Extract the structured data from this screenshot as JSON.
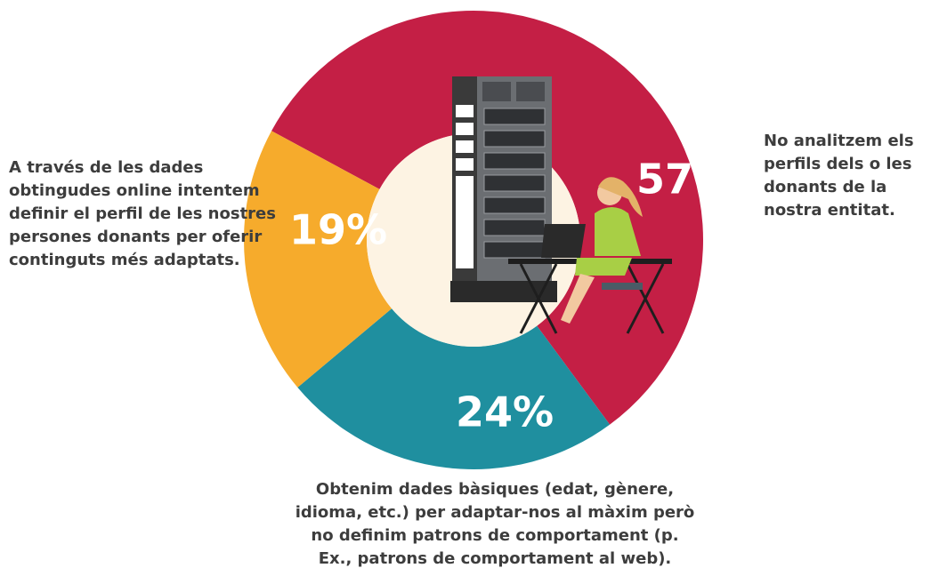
{
  "chart_data": {
    "type": "pie",
    "donut": true,
    "categories": [
      "No analitzem els perfils dels o les donants de la nostra entitat.",
      "Obtenim dades bàsiques (edat, gènere, idioma, etc.) per adaptar-nos al màxim però no definim patrons de comportament (p. Ex., patrons de comportament al web).",
      "A través de les dades obtingudes online intentem definir el perfil de les nostres persones donants per oferir continguts més adaptats."
    ],
    "values": [
      57,
      24,
      19
    ],
    "value_labels": [
      "57%",
      "24%",
      "19%"
    ],
    "colors": [
      "#c41f45",
      "#1f8f9f",
      "#f6ab2c"
    ]
  }
}
